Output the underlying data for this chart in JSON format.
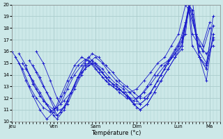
{
  "background_color": "#cce8e8",
  "line_color": "#1a1acc",
  "grid_color": "#aacccc",
  "xlabel": "Température (°c)",
  "ylim": [
    10,
    20
  ],
  "yticks": [
    10,
    11,
    12,
    13,
    14,
    15,
    16,
    17,
    18,
    19,
    20
  ],
  "day_labels": [
    "Jeu",
    "Ven",
    "Sam",
    "Dim",
    "Lun",
    "Ma"
  ],
  "day_positions": [
    0.0,
    1.0,
    2.0,
    3.0,
    4.0,
    4.75
  ],
  "xlim": [
    0.0,
    5.0
  ],
  "series": [
    {
      "start": 0.0,
      "points": [
        [
          0.0,
          16.0
        ],
        [
          0.17,
          15.0
        ],
        [
          0.33,
          13.5
        ],
        [
          0.5,
          12.2
        ],
        [
          0.67,
          11.0
        ],
        [
          0.83,
          10.2
        ],
        [
          1.0,
          10.8
        ],
        [
          1.17,
          12.2
        ],
        [
          1.33,
          13.5
        ],
        [
          1.5,
          14.8
        ],
        [
          1.67,
          15.5
        ],
        [
          1.83,
          15.2
        ],
        [
          2.0,
          14.5
        ],
        [
          2.17,
          13.8
        ],
        [
          2.33,
          13.2
        ],
        [
          2.5,
          12.8
        ],
        [
          2.67,
          12.5
        ],
        [
          2.83,
          12.5
        ],
        [
          3.0,
          12.8
        ],
        [
          3.17,
          13.5
        ],
        [
          3.33,
          14.2
        ],
        [
          3.5,
          15.0
        ],
        [
          3.67,
          15.5
        ],
        [
          3.83,
          16.5
        ],
        [
          4.0,
          17.5
        ],
        [
          4.17,
          20.0
        ],
        [
          4.25,
          19.5
        ],
        [
          4.42,
          17.5
        ],
        [
          4.58,
          16.0
        ],
        [
          4.75,
          18.0
        ]
      ]
    },
    {
      "start": 0.08,
      "points": [
        [
          0.08,
          15.5
        ],
        [
          0.25,
          14.5
        ],
        [
          0.42,
          13.0
        ],
        [
          0.58,
          12.0
        ],
        [
          0.75,
          11.2
        ],
        [
          0.92,
          10.8
        ],
        [
          1.08,
          11.2
        ],
        [
          1.25,
          12.5
        ],
        [
          1.42,
          13.8
        ],
        [
          1.58,
          14.8
        ],
        [
          1.75,
          15.3
        ],
        [
          1.92,
          15.0
        ],
        [
          2.08,
          14.2
        ],
        [
          2.25,
          13.5
        ],
        [
          2.42,
          13.0
        ],
        [
          2.58,
          12.5
        ],
        [
          2.75,
          12.0
        ],
        [
          2.92,
          11.8
        ],
        [
          3.08,
          12.2
        ],
        [
          3.25,
          13.0
        ],
        [
          3.42,
          14.0
        ],
        [
          3.58,
          14.8
        ],
        [
          3.75,
          15.2
        ],
        [
          3.92,
          16.2
        ],
        [
          4.08,
          17.2
        ],
        [
          4.25,
          19.5
        ],
        [
          4.33,
          16.5
        ],
        [
          4.5,
          15.5
        ],
        [
          4.67,
          13.5
        ],
        [
          4.83,
          17.5
        ]
      ]
    },
    {
      "start": 0.17,
      "points": [
        [
          0.17,
          15.8
        ],
        [
          0.33,
          14.8
        ],
        [
          0.5,
          13.2
        ],
        [
          0.67,
          12.2
        ],
        [
          0.83,
          11.5
        ],
        [
          1.0,
          11.0
        ],
        [
          1.17,
          11.5
        ],
        [
          1.33,
          12.8
        ],
        [
          1.5,
          14.0
        ],
        [
          1.67,
          14.8
        ],
        [
          1.83,
          15.5
        ],
        [
          2.0,
          15.0
        ],
        [
          2.17,
          14.2
        ],
        [
          2.33,
          13.5
        ],
        [
          2.5,
          13.0
        ],
        [
          2.67,
          12.5
        ],
        [
          2.83,
          12.0
        ],
        [
          3.0,
          12.0
        ],
        [
          3.17,
          12.5
        ],
        [
          3.33,
          13.2
        ],
        [
          3.5,
          14.0
        ],
        [
          3.67,
          14.8
        ],
        [
          3.83,
          15.5
        ],
        [
          4.0,
          16.5
        ],
        [
          4.17,
          18.5
        ],
        [
          4.25,
          20.0
        ],
        [
          4.42,
          17.5
        ],
        [
          4.58,
          16.5
        ],
        [
          4.75,
          18.5
        ]
      ]
    },
    {
      "start": 0.25,
      "points": [
        [
          0.25,
          15.0
        ],
        [
          0.42,
          14.0
        ],
        [
          0.58,
          12.8
        ],
        [
          0.75,
          11.8
        ],
        [
          0.92,
          11.0
        ],
        [
          1.08,
          10.5
        ],
        [
          1.25,
          11.2
        ],
        [
          1.42,
          12.5
        ],
        [
          1.58,
          13.8
        ],
        [
          1.75,
          14.8
        ],
        [
          1.92,
          15.2
        ],
        [
          2.08,
          14.5
        ],
        [
          2.25,
          13.8
        ],
        [
          2.42,
          13.2
        ],
        [
          2.58,
          12.8
        ],
        [
          2.75,
          12.2
        ],
        [
          2.92,
          11.5
        ],
        [
          3.08,
          11.5
        ],
        [
          3.25,
          12.0
        ],
        [
          3.42,
          13.0
        ],
        [
          3.58,
          14.0
        ],
        [
          3.75,
          15.0
        ],
        [
          3.92,
          15.8
        ],
        [
          4.08,
          16.8
        ],
        [
          4.25,
          19.8
        ],
        [
          4.33,
          19.2
        ],
        [
          4.5,
          15.5
        ],
        [
          4.67,
          14.8
        ],
        [
          4.83,
          17.2
        ]
      ]
    },
    {
      "start": 0.33,
      "points": [
        [
          0.33,
          14.5
        ],
        [
          0.5,
          13.5
        ],
        [
          0.67,
          12.5
        ],
        [
          0.83,
          11.5
        ],
        [
          1.0,
          10.5
        ],
        [
          1.08,
          10.2
        ],
        [
          1.25,
          11.0
        ],
        [
          1.42,
          12.5
        ],
        [
          1.58,
          13.8
        ],
        [
          1.75,
          14.5
        ],
        [
          1.92,
          15.0
        ],
        [
          2.08,
          14.5
        ],
        [
          2.25,
          13.8
        ],
        [
          2.42,
          13.2
        ],
        [
          2.58,
          12.8
        ],
        [
          2.75,
          12.2
        ],
        [
          2.92,
          11.5
        ],
        [
          3.08,
          11.0
        ],
        [
          3.25,
          11.5
        ],
        [
          3.42,
          12.5
        ],
        [
          3.58,
          13.5
        ],
        [
          3.75,
          14.5
        ],
        [
          3.92,
          15.5
        ],
        [
          4.08,
          16.5
        ],
        [
          4.25,
          19.5
        ],
        [
          4.33,
          20.5
        ],
        [
          4.5,
          15.5
        ],
        [
          4.67,
          14.5
        ],
        [
          4.83,
          19.0
        ]
      ]
    },
    {
      "start": 0.42,
      "points": [
        [
          0.42,
          15.2
        ],
        [
          0.58,
          14.2
        ],
        [
          0.75,
          13.0
        ],
        [
          0.92,
          12.0
        ],
        [
          1.08,
          11.0
        ],
        [
          1.17,
          11.0
        ],
        [
          1.33,
          11.5
        ],
        [
          1.5,
          12.8
        ],
        [
          1.67,
          14.0
        ],
        [
          1.83,
          15.0
        ],
        [
          2.0,
          15.5
        ],
        [
          2.17,
          15.0
        ],
        [
          2.33,
          14.2
        ],
        [
          2.5,
          13.5
        ],
        [
          2.67,
          13.0
        ],
        [
          2.83,
          12.5
        ],
        [
          3.0,
          11.8
        ],
        [
          3.08,
          11.5
        ],
        [
          3.25,
          12.0
        ],
        [
          3.42,
          13.0
        ],
        [
          3.58,
          14.0
        ],
        [
          3.75,
          15.0
        ],
        [
          3.92,
          15.8
        ],
        [
          4.08,
          16.5
        ],
        [
          4.25,
          20.0
        ],
        [
          4.33,
          19.5
        ],
        [
          4.5,
          16.0
        ],
        [
          4.67,
          15.0
        ],
        [
          4.83,
          18.2
        ]
      ]
    },
    {
      "start": 0.5,
      "points": [
        [
          0.5,
          14.8
        ],
        [
          0.67,
          13.8
        ],
        [
          0.83,
          12.5
        ],
        [
          1.0,
          11.2
        ],
        [
          1.08,
          10.5
        ],
        [
          1.17,
          10.8
        ],
        [
          1.33,
          11.8
        ],
        [
          1.5,
          13.0
        ],
        [
          1.67,
          14.2
        ],
        [
          1.83,
          14.8
        ],
        [
          2.0,
          15.0
        ],
        [
          2.17,
          14.5
        ],
        [
          2.33,
          13.8
        ],
        [
          2.5,
          13.2
        ],
        [
          2.67,
          12.8
        ],
        [
          2.83,
          12.0
        ],
        [
          3.0,
          11.2
        ],
        [
          3.08,
          11.0
        ],
        [
          3.25,
          11.5
        ],
        [
          3.42,
          12.5
        ],
        [
          3.58,
          13.5
        ],
        [
          3.75,
          14.5
        ],
        [
          3.92,
          15.5
        ],
        [
          4.08,
          16.2
        ],
        [
          4.25,
          19.8
        ],
        [
          4.33,
          19.5
        ],
        [
          4.5,
          15.5
        ],
        [
          4.67,
          14.5
        ],
        [
          4.83,
          17.0
        ]
      ]
    },
    {
      "start": 0.58,
      "points": [
        [
          0.58,
          16.0
        ],
        [
          0.75,
          15.0
        ],
        [
          0.92,
          13.5
        ],
        [
          1.08,
          12.0
        ],
        [
          1.17,
          11.5
        ],
        [
          1.25,
          11.8
        ],
        [
          1.42,
          12.5
        ],
        [
          1.58,
          13.8
        ],
        [
          1.75,
          15.0
        ],
        [
          1.92,
          15.8
        ],
        [
          2.08,
          15.5
        ],
        [
          2.25,
          14.8
        ],
        [
          2.42,
          14.2
        ],
        [
          2.58,
          13.5
        ],
        [
          2.75,
          13.0
        ],
        [
          2.92,
          12.5
        ],
        [
          3.08,
          12.0
        ],
        [
          3.17,
          12.0
        ],
        [
          3.33,
          12.5
        ],
        [
          3.5,
          13.5
        ],
        [
          3.67,
          14.5
        ],
        [
          3.83,
          15.5
        ],
        [
          4.0,
          16.5
        ],
        [
          4.17,
          17.5
        ],
        [
          4.25,
          20.0
        ],
        [
          4.33,
          17.5
        ],
        [
          4.5,
          16.5
        ],
        [
          4.67,
          15.8
        ],
        [
          4.83,
          16.5
        ]
      ]
    }
  ]
}
